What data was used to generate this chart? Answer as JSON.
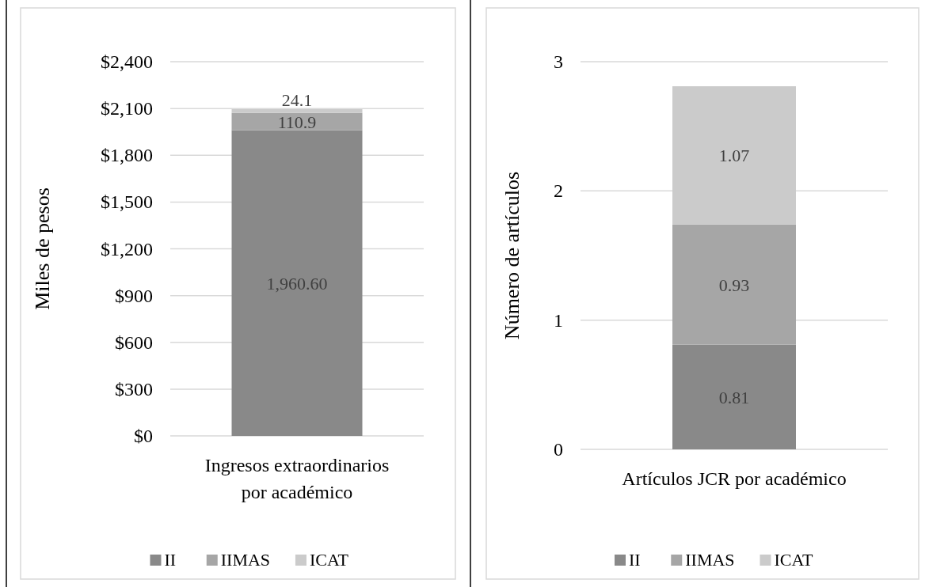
{
  "chart_data": [
    {
      "type": "bar",
      "stacked": true,
      "ylabel": "Miles de pesos",
      "categories": [
        "Ingresos extraordinarios por académico"
      ],
      "series": [
        {
          "name": "II",
          "color": "#898989",
          "values": [
            1960.6
          ],
          "value_labels": [
            "1,960.60"
          ]
        },
        {
          "name": "IIMAS",
          "color": "#a6a6a6",
          "values": [
            110.9
          ],
          "value_labels": [
            "110.9"
          ]
        },
        {
          "name": "ICAT",
          "color": "#cbcbcb",
          "values": [
            24.1
          ],
          "value_labels": [
            "24.1"
          ]
        }
      ],
      "ylim": [
        0,
        2400
      ],
      "yticks": [
        {
          "value": 0,
          "label": "$0"
        },
        {
          "value": 300,
          "label": "$300"
        },
        {
          "value": 600,
          "label": "$600"
        },
        {
          "value": 900,
          "label": "$900"
        },
        {
          "value": 1200,
          "label": "$1,200"
        },
        {
          "value": 1500,
          "label": "$1,500"
        },
        {
          "value": 1800,
          "label": "$1,800"
        },
        {
          "value": 2100,
          "label": "$2,100"
        },
        {
          "value": 2400,
          "label": "$2,400"
        }
      ],
      "grid": "y",
      "legend": "bottom"
    },
    {
      "type": "bar",
      "stacked": true,
      "ylabel": "Número de artículos",
      "categories": [
        "Artículos JCR por académico"
      ],
      "series": [
        {
          "name": "II",
          "color": "#898989",
          "values": [
            0.81
          ]
        },
        {
          "name": "IIMAS",
          "color": "#a6a6a6",
          "values": [
            0.93
          ]
        },
        {
          "name": "ICAT",
          "color": "#cbcbcb",
          "values": [
            1.07
          ]
        }
      ],
      "ylim": [
        0,
        3
      ],
      "yticks": [
        0,
        1,
        2,
        3
      ],
      "grid": "y",
      "legend": "bottom",
      "data_labels": true
    }
  ]
}
